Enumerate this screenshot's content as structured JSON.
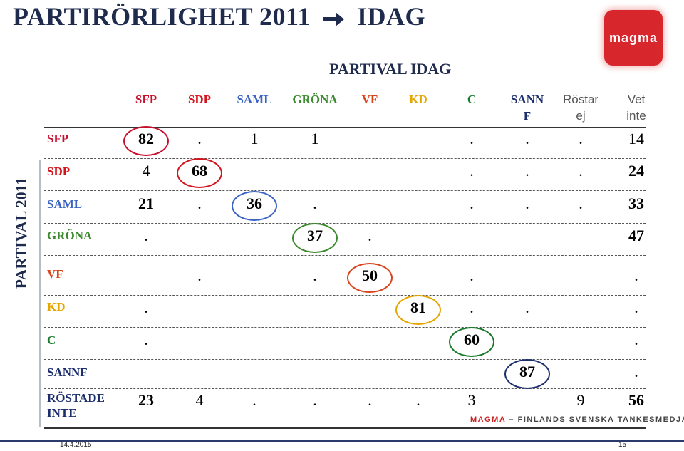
{
  "header": {
    "title_left": "PARTIRÖRLIGHET 2011",
    "title_right": "IDAG",
    "logo_text": "magma"
  },
  "side_label": "PARTIVAL 2011",
  "footer": {
    "date": "14.4.2015",
    "page": "15",
    "brand_mg": "MAGMA",
    "brand_rest": " – FINLANDS SVENSKA TANKESMEDJA"
  },
  "colors": {
    "SFP": "#c8102e",
    "SDP": "#d4141b",
    "SAML": "#3a63c4",
    "GRÖNA": "#3c8a2e",
    "VF": "#d9441c",
    "KD": "#e6a600",
    "C": "#197a2c",
    "SANNF": "#1c2e6e",
    "RÖSTADE INTE": "#1c2e6e",
    "title": "#1f2b4d"
  },
  "chart_data": {
    "type": "table",
    "title": "PARTIVAL IDAG",
    "row_axis_label": "PARTIVAL 2011",
    "columns": [
      "SFP",
      "SDP",
      "SAML",
      "GRÖNA",
      "VF",
      "KD",
      "C",
      "SANN F",
      "Röstar ej",
      "Vet inte"
    ],
    "rows": [
      {
        "label": "SFP",
        "cells": [
          "82",
          ".",
          "1",
          "1",
          "",
          "",
          ".",
          ".",
          ".",
          "14"
        ],
        "highlight": 0
      },
      {
        "label": "SDP",
        "cells": [
          "4",
          "68",
          "",
          "",
          "",
          "",
          ".",
          ".",
          ".",
          "24"
        ],
        "highlight": 1
      },
      {
        "label": "SAML",
        "cells": [
          "21",
          ".",
          "36",
          ".",
          "",
          "",
          ".",
          ".",
          ".",
          "33"
        ],
        "highlight": 2
      },
      {
        "label": "GRÖNA",
        "cells": [
          ".",
          "",
          "",
          "37",
          ".",
          "",
          "",
          "",
          "",
          "47"
        ],
        "highlight": 3
      },
      {
        "label": "VF",
        "cells": [
          "",
          ".",
          "",
          ".",
          "50",
          "",
          ".",
          "",
          "",
          "."
        ],
        "highlight": 4
      },
      {
        "label": "KD",
        "cells": [
          ".",
          "",
          "",
          "",
          "",
          "81",
          ".",
          ".",
          "",
          "."
        ],
        "highlight": 5
      },
      {
        "label": "C",
        "cells": [
          ".",
          "",
          "",
          "",
          "",
          "",
          "60",
          "",
          "",
          "."
        ],
        "highlight": 6
      },
      {
        "label": "SANNF",
        "cells": [
          "",
          "",
          "",
          "",
          "",
          "",
          "",
          "87",
          "",
          "."
        ],
        "highlight": 7
      },
      {
        "label": "RÖSTADE INTE",
        "cells": [
          "23",
          "4",
          ".",
          ".",
          ".",
          ".",
          "3",
          "",
          "9",
          "56"
        ],
        "highlight": -1
      }
    ]
  }
}
